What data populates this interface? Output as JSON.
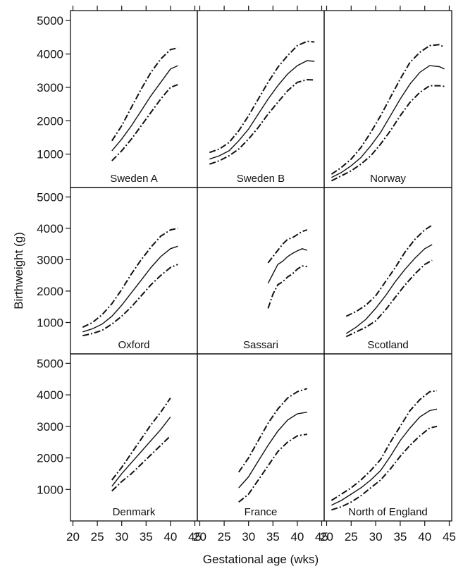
{
  "chart_data": {
    "type": "line",
    "layout": "3x3 trellis",
    "xlabel": "Gestational age (wks)",
    "ylabel": "Birthweight (g)",
    "xlim": [
      19.5,
      45.5
    ],
    "ylim": [
      0,
      5300
    ],
    "xticks": [
      20,
      25,
      30,
      35,
      40,
      45
    ],
    "yticks": [
      1000,
      2000,
      3000,
      4000,
      5000
    ],
    "line_styles": {
      "median": "solid",
      "upper": "dash-dot",
      "lower": "dash-dot"
    },
    "panels": [
      {
        "name": "Sweden A",
        "x": [
          28,
          30,
          32,
          34,
          36,
          38,
          40,
          41.5
        ],
        "median": [
          1100,
          1450,
          1850,
          2300,
          2750,
          3150,
          3550,
          3650
        ],
        "upper": [
          1400,
          1850,
          2400,
          2950,
          3450,
          3850,
          4130,
          4180
        ],
        "lower": [
          800,
          1100,
          1450,
          1850,
          2250,
          2650,
          3000,
          3080
        ]
      },
      {
        "name": "Sweden B",
        "x": [
          22,
          24,
          26,
          28,
          30,
          32,
          34,
          36,
          38,
          40,
          42,
          43.5
        ],
        "median": [
          850,
          950,
          1100,
          1400,
          1750,
          2200,
          2650,
          3050,
          3400,
          3650,
          3800,
          3780
        ],
        "upper": [
          1050,
          1150,
          1350,
          1700,
          2150,
          2650,
          3150,
          3600,
          3950,
          4250,
          4380,
          4360
        ],
        "lower": [
          700,
          800,
          950,
          1150,
          1450,
          1800,
          2200,
          2550,
          2900,
          3150,
          3230,
          3220
        ]
      },
      {
        "name": "Norway",
        "x": [
          21,
          23,
          25,
          27,
          29,
          31,
          33,
          35,
          37,
          39,
          41,
          43,
          44
        ],
        "median": [
          300,
          450,
          650,
          900,
          1250,
          1650,
          2150,
          2650,
          3100,
          3450,
          3650,
          3620,
          3550
        ],
        "upper": [
          400,
          600,
          850,
          1200,
          1650,
          2150,
          2700,
          3250,
          3750,
          4050,
          4250,
          4280,
          4200
        ],
        "lower": [
          200,
          350,
          500,
          700,
          950,
          1300,
          1700,
          2150,
          2550,
          2850,
          3050,
          3050,
          3030
        ]
      },
      {
        "name": "Oxford",
        "x": [
          22,
          24,
          26,
          28,
          30,
          32,
          34,
          36,
          38,
          40,
          41.5
        ],
        "median": [
          700,
          800,
          950,
          1200,
          1550,
          1950,
          2350,
          2750,
          3100,
          3350,
          3430
        ],
        "upper": [
          850,
          1000,
          1250,
          1600,
          2050,
          2550,
          3000,
          3400,
          3750,
          3950,
          4000
        ],
        "lower": [
          580,
          650,
          750,
          950,
          1200,
          1500,
          1850,
          2200,
          2500,
          2750,
          2850
        ]
      },
      {
        "name": "Sassari",
        "x": [
          34,
          35,
          36,
          37,
          38,
          39,
          40,
          41,
          42
        ],
        "median": [
          2250,
          2550,
          2850,
          2950,
          3100,
          3200,
          3280,
          3350,
          3300
        ],
        "upper": [
          2900,
          3100,
          3300,
          3500,
          3650,
          3700,
          3800,
          3900,
          3950
        ],
        "lower": [
          1450,
          1900,
          2200,
          2300,
          2450,
          2550,
          2700,
          2800,
          2780
        ]
      },
      {
        "name": "Scotland",
        "x": [
          24,
          26,
          28,
          30,
          32,
          34,
          36,
          38,
          40,
          41.5
        ],
        "median": [
          650,
          850,
          1100,
          1450,
          1850,
          2300,
          2700,
          3050,
          3350,
          3480
        ],
        "upper": [
          1200,
          1350,
          1550,
          1850,
          2300,
          2750,
          3250,
          3650,
          3950,
          4100
        ],
        "lower": [
          550,
          700,
          850,
          1050,
          1400,
          1800,
          2200,
          2550,
          2850,
          2980
        ]
      },
      {
        "name": "Denmark",
        "x": [
          28,
          30,
          32,
          34,
          36,
          38,
          40
        ],
        "median": [
          1100,
          1500,
          1850,
          2200,
          2550,
          2900,
          3300
        ],
        "upper": [
          1300,
          1700,
          2150,
          2600,
          3050,
          3450,
          3900
        ],
        "lower": [
          950,
          1250,
          1500,
          1800,
          2100,
          2400,
          2700
        ]
      },
      {
        "name": "France",
        "x": [
          28,
          30,
          32,
          34,
          36,
          38,
          40,
          42
        ],
        "median": [
          1050,
          1400,
          1900,
          2400,
          2850,
          3200,
          3400,
          3450
        ],
        "upper": [
          1550,
          2000,
          2550,
          3100,
          3550,
          3900,
          4100,
          4200
        ],
        "lower": [
          600,
          850,
          1300,
          1750,
          2200,
          2500,
          2700,
          2750
        ]
      },
      {
        "name": "North of England",
        "x": [
          21,
          23,
          25,
          27,
          29,
          31,
          33,
          35,
          37,
          39,
          41,
          42.5
        ],
        "median": [
          500,
          650,
          850,
          1050,
          1300,
          1600,
          2050,
          2550,
          2950,
          3300,
          3500,
          3550
        ],
        "upper": [
          650,
          850,
          1050,
          1300,
          1600,
          1950,
          2500,
          3000,
          3500,
          3850,
          4100,
          4130
        ],
        "lower": [
          350,
          450,
          600,
          800,
          1050,
          1300,
          1650,
          2050,
          2400,
          2700,
          2950,
          3000
        ]
      }
    ]
  }
}
